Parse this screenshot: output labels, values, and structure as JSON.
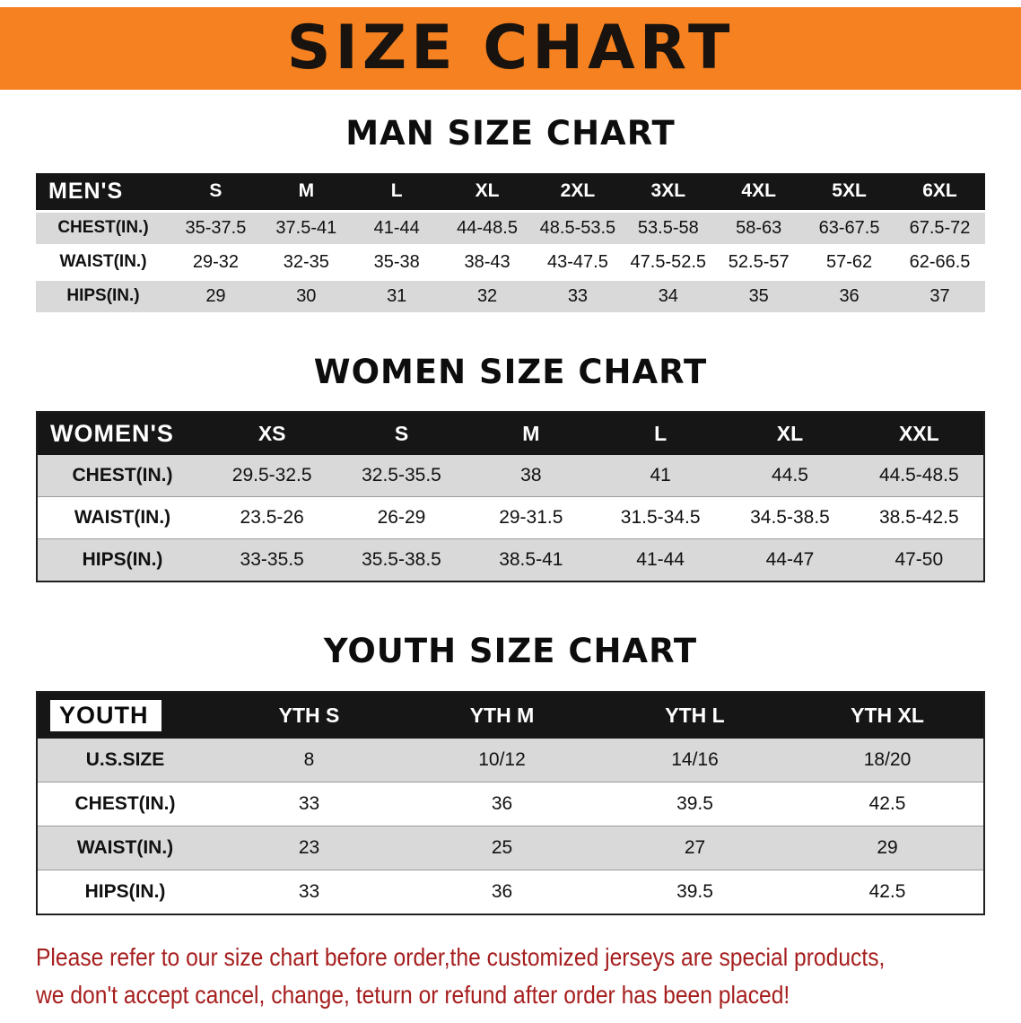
{
  "banner": {
    "title": "SIZE CHART"
  },
  "colors": {
    "banner_orange": "#f68121",
    "table_header_black": "#161616",
    "row_stripe_gray": "#d9d9d9",
    "disclaimer_red": "#a61e1e"
  },
  "men": {
    "heading": "MAN SIZE CHART",
    "table": {
      "header": [
        "MEN'S",
        "S",
        "M",
        "L",
        "XL",
        "2XL",
        "3XL",
        "4XL",
        "5XL",
        "6XL"
      ],
      "rows": [
        [
          "CHEST(IN.)",
          "35-37.5",
          "37.5-41",
          "41-44",
          "44-48.5",
          "48.5-53.5",
          "53.5-58",
          "58-63",
          "63-67.5",
          "67.5-72"
        ],
        [
          "WAIST(IN.)",
          "29-32",
          "32-35",
          "35-38",
          "38-43",
          "43-47.5",
          "47.5-52.5",
          "52.5-57",
          "57-62",
          "62-66.5"
        ],
        [
          "HIPS(IN.)",
          "29",
          "30",
          "31",
          "32",
          "33",
          "34",
          "35",
          "36",
          "37"
        ]
      ]
    }
  },
  "women": {
    "heading": "WOMEN SIZE CHART",
    "table": {
      "header": [
        "WOMEN'S",
        "XS",
        "S",
        "M",
        "L",
        "XL",
        "XXL"
      ],
      "rows": [
        [
          "CHEST(IN.)",
          "29.5-32.5",
          "32.5-35.5",
          "38",
          "41",
          "44.5",
          "44.5-48.5"
        ],
        [
          "WAIST(IN.)",
          "23.5-26",
          "26-29",
          "29-31.5",
          "31.5-34.5",
          "34.5-38.5",
          "38.5-42.5"
        ],
        [
          "HIPS(IN.)",
          "33-35.5",
          "35.5-38.5",
          "38.5-41",
          "41-44",
          "44-47",
          "47-50"
        ]
      ]
    }
  },
  "youth": {
    "heading": "YOUTH SIZE CHART",
    "table": {
      "header": [
        "YOUTH",
        "YTH S",
        "YTH M",
        "YTH L",
        "YTH XL"
      ],
      "rows": [
        [
          "U.S.SIZE",
          "8",
          "10/12",
          "14/16",
          "18/20"
        ],
        [
          "CHEST(IN.)",
          "33",
          "36",
          "39.5",
          "42.5"
        ],
        [
          "WAIST(IN.)",
          "23",
          "25",
          "27",
          "29"
        ],
        [
          "HIPS(IN.)",
          "33",
          "36",
          "39.5",
          "42.5"
        ]
      ]
    }
  },
  "disclaimer": {
    "line1": "Please refer to our size chart before order,the customized jerseys are special products,",
    "line2": "we don't accept cancel, change, teturn or refund after order has been placed!"
  }
}
